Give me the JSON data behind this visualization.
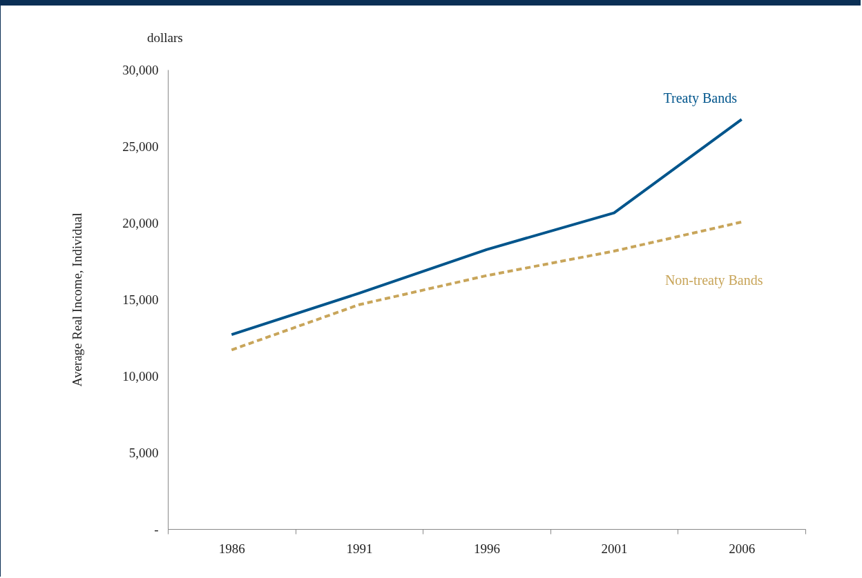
{
  "chart_data": {
    "type": "line",
    "ylabel": "Average Real Income, Individual",
    "annotations": [
      "dollars"
    ],
    "categories": [
      "1986",
      "1991",
      "1996",
      "2001",
      "2006"
    ],
    "series": [
      {
        "name": "Treaty Bands",
        "color": "#00558c",
        "line_style": "solid",
        "values": [
          12700,
          15400,
          18250,
          20650,
          26750
        ]
      },
      {
        "name": "Non-treaty Bands",
        "color": "#c8a55a",
        "line_style": "dashed",
        "values": [
          11700,
          14650,
          16550,
          18150,
          20050
        ]
      }
    ],
    "ylim": [
      0,
      30000
    ],
    "yticks": [
      {
        "value": 0,
        "label": "-"
      },
      {
        "value": 5000,
        "label": "5,000"
      },
      {
        "value": 10000,
        "label": "10,000"
      },
      {
        "value": 15000,
        "label": "15,000"
      },
      {
        "value": 20000,
        "label": "20,000"
      },
      {
        "value": 25000,
        "label": "25,000"
      },
      {
        "value": 30000,
        "label": "30,000"
      }
    ],
    "grid": false,
    "legend": false,
    "marker": "none"
  }
}
